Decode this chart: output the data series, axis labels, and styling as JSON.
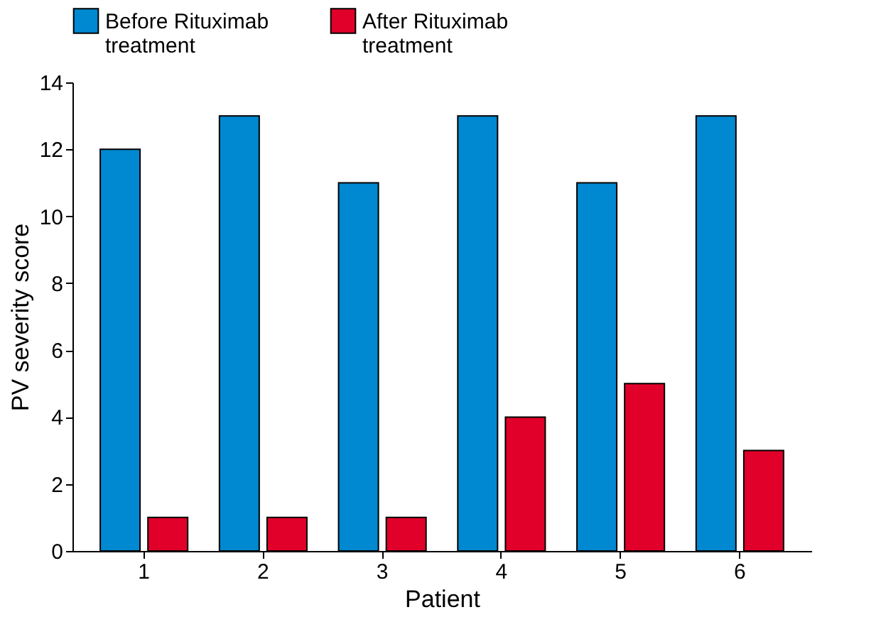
{
  "chart_data": {
    "type": "bar",
    "xlabel": "Patient",
    "ylabel": "PV severity score",
    "categories": [
      "1",
      "2",
      "3",
      "4",
      "5",
      "6"
    ],
    "series": [
      {
        "name": "Before Rituximab treatment",
        "color": "#0088d1",
        "values": [
          12,
          13,
          11,
          13,
          11,
          13
        ]
      },
      {
        "name": "After Rituximab treatment",
        "color": "#e0002a",
        "values": [
          1,
          1,
          1,
          4,
          5,
          3
        ]
      }
    ],
    "ylim": [
      0,
      14
    ],
    "yticks": [
      0,
      2,
      4,
      6,
      8,
      10,
      12,
      14
    ],
    "grid": false,
    "legend": "top"
  }
}
